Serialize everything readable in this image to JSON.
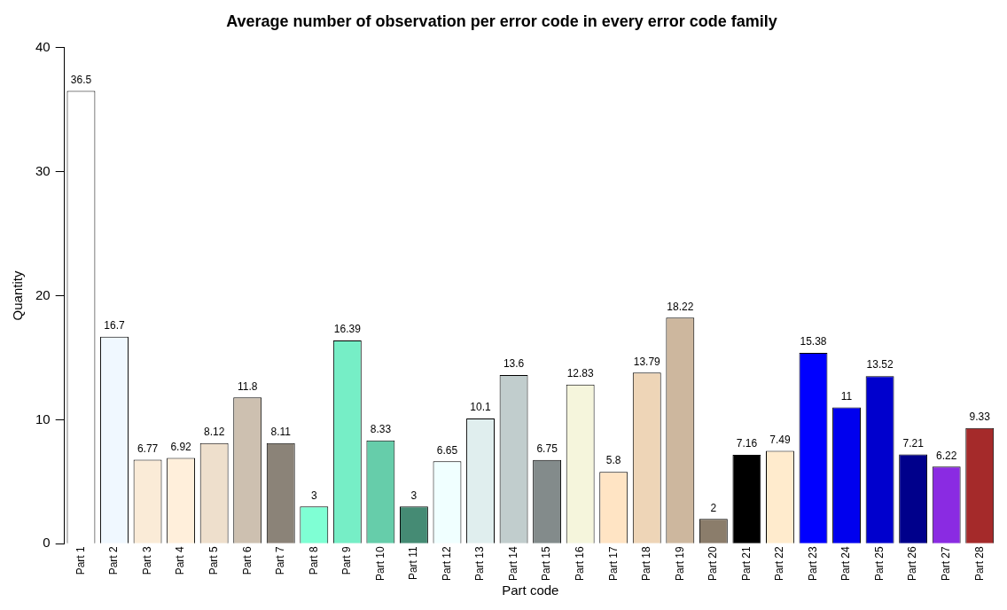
{
  "chart_data": {
    "type": "bar",
    "title": "Average number of observation per error code in every error code family",
    "xlabel": "Part code",
    "ylabel": "Quantity",
    "categories": [
      "Part 1",
      "Part 2",
      "Part 3",
      "Part 4",
      "Part 5",
      "Part 6",
      "Part 7",
      "Part 8",
      "Part 9",
      "Part 10",
      "Part 11",
      "Part 12",
      "Part 13",
      "Part 14",
      "Part 15",
      "Part 16",
      "Part 17",
      "Part 18",
      "Part 19",
      "Part 20",
      "Part 21",
      "Part 22",
      "Part 23",
      "Part 24",
      "Part 25",
      "Part 26",
      "Part 27",
      "Part 28"
    ],
    "values": [
      36.5,
      16.7,
      6.77,
      6.92,
      8.12,
      11.8,
      8.11,
      3,
      16.39,
      8.33,
      3,
      6.65,
      10.1,
      13.6,
      6.75,
      12.83,
      5.8,
      13.79,
      18.22,
      2,
      7.16,
      7.49,
      15.38,
      11,
      13.52,
      7.21,
      6.22,
      9.33
    ],
    "colors": [
      "#ffffff",
      "#f0f8ff",
      "#faebd7",
      "#ffefdb",
      "#eedfcc",
      "#cdc0b0",
      "#8b8378",
      "#7fffd4",
      "#76eec6",
      "#66cdaa",
      "#458b74",
      "#f0ffff",
      "#e0eeee",
      "#c1cdcd",
      "#838b8b",
      "#f5f5dc",
      "#ffe4c4",
      "#eed5b7",
      "#cdb79e",
      "#8b7d6b",
      "#000000",
      "#ffebcd",
      "#0000ff",
      "#0000ee",
      "#0000cd",
      "#00008b",
      "#8a2be2",
      "#a52a2a"
    ],
    "ylim": [
      0,
      40
    ],
    "yticks": [
      0,
      10,
      20,
      30,
      40
    ],
    "grid": false,
    "legend": false,
    "data_labels": true
  }
}
